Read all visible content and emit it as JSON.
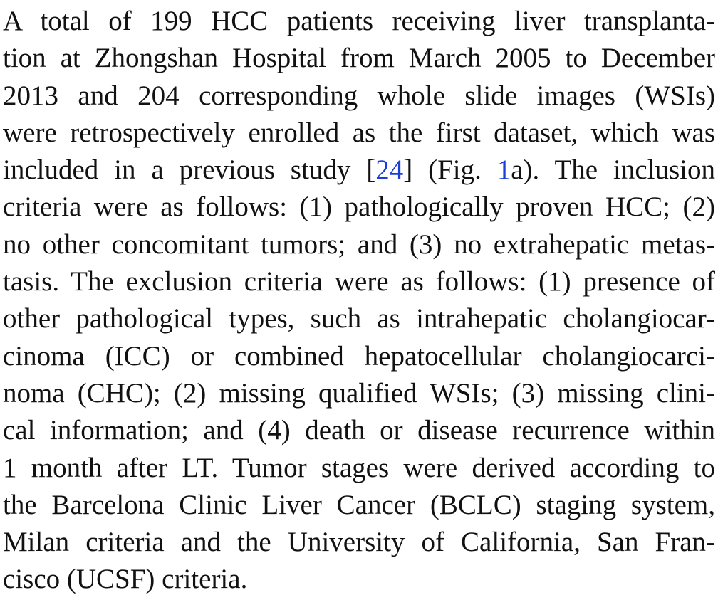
{
  "document": {
    "link_color": "#1a3fd6",
    "lines": [
      [
        "A total of 199 HCC patients receiving liver transplanta-"
      ],
      [
        "tion at Zhongshan Hospital from March 2005 to December"
      ],
      [
        "2013 and 204 corresponding whole slide images (WSIs)"
      ],
      [
        "were retrospectively enrolled as the first dataset, which was"
      ],
      [
        "included in a previous study [",
        "24",
        "] (Fig. ",
        "1",
        "a). The inclusion"
      ],
      [
        "criteria were as follows: (1) pathologically proven HCC; (2)"
      ],
      [
        "no other concomitant tumors; and (3) no extrahepatic metas-"
      ],
      [
        "tasis. The exclusion criteria were as follows: (1) presence of"
      ],
      [
        "other pathological types, such as intrahepatic cholangiocar-"
      ],
      [
        "cinoma (ICC) or combined hepatocellular cholangiocarci-"
      ],
      [
        "noma (CHC); (2) missing qualified WSIs; (3) missing clini-"
      ],
      [
        "cal information; and (4) death or disease recurrence within"
      ],
      [
        "1 month after LT. Tumor stages were derived according to"
      ],
      [
        "the Barcelona Clinic Liver Cancer (BCLC) staging system,"
      ],
      [
        "Milan criteria and the University of California, San Fran-"
      ],
      [
        "cisco (UCSF) criteria."
      ]
    ]
  }
}
